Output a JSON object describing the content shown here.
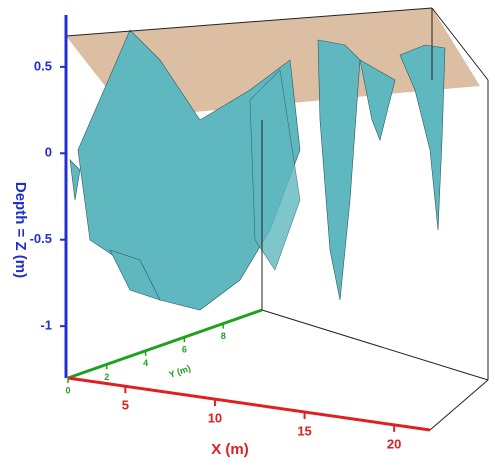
{
  "chart_data": {
    "type": "surface3d",
    "x_label": "X (m)",
    "y_label": "Y (m)",
    "z_label": "Depth = Z (m)",
    "xlim": [
      1.8,
      22
    ],
    "xticks": [
      5,
      10,
      15,
      20
    ],
    "ylim": [
      0,
      10
    ],
    "yticks": [
      0,
      2,
      4,
      6,
      8
    ],
    "zlim": [
      -1.3,
      0.8
    ],
    "zticks": [
      0.5,
      0,
      -0.5,
      -1
    ],
    "colors": {
      "x_axis": "#e02020",
      "y_axis": "#20a020",
      "z_axis": "#2030d0",
      "surface": "#5fb8c0",
      "plane": "#d8b898"
    }
  }
}
